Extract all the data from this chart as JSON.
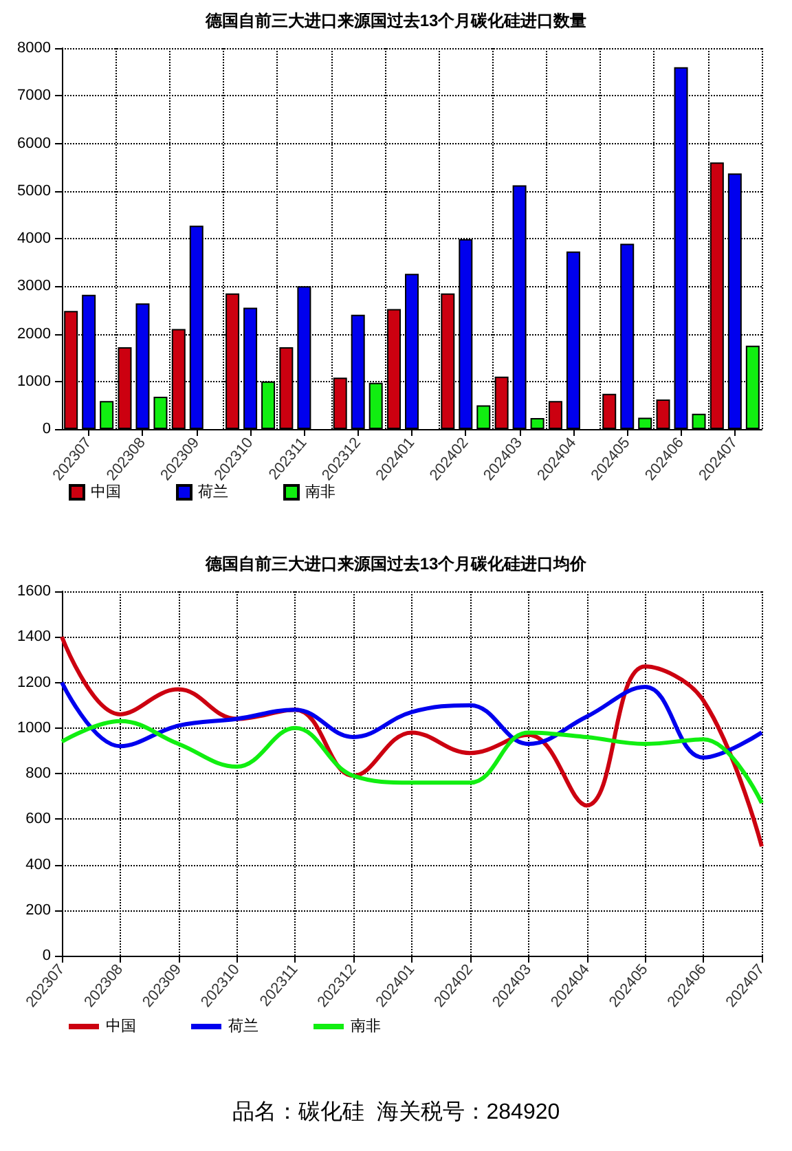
{
  "chart_data": [
    {
      "type": "bar",
      "title": "德国自前三大进口来源国过去13个月碳化硅进口数量",
      "categories": [
        "202307",
        "202308",
        "202309",
        "202310",
        "202311",
        "202312",
        "202401",
        "202402",
        "202403",
        "202404",
        "202405",
        "202406",
        "202407"
      ],
      "series": [
        {
          "name": "中国",
          "color": "#cc0010",
          "values": [
            2480,
            1720,
            2100,
            2850,
            1720,
            1080,
            2520,
            2850,
            1100,
            590,
            740,
            620,
            5600
          ]
        },
        {
          "name": "荷兰",
          "color": "#0000ee",
          "values": [
            2820,
            2640,
            4270,
            2550,
            3000,
            2400,
            3260,
            3990,
            5120,
            3730,
            3890,
            7600,
            5370
          ]
        },
        {
          "name": "南非",
          "color": "#11ee11",
          "values": [
            590,
            680,
            null,
            1000,
            null,
            970,
            null,
            500,
            230,
            null,
            240,
            320,
            1750
          ]
        }
      ],
      "ylim": [
        0,
        8000
      ],
      "yticks": [
        0,
        1000,
        2000,
        3000,
        4000,
        5000,
        6000,
        7000,
        8000
      ],
      "grid": true,
      "legend": "bottom left"
    },
    {
      "type": "line",
      "title": "德国自前三大进口来源国过去13个月碳化硅进口均价",
      "categories": [
        "202307",
        "202308",
        "202309",
        "202310",
        "202311",
        "202312",
        "202401",
        "202402",
        "202403",
        "202404",
        "202405",
        "202406",
        "202407"
      ],
      "series": [
        {
          "name": "中国",
          "color": "#cc0010",
          "values": [
            1400,
            1060,
            1170,
            1040,
            1080,
            790,
            980,
            890,
            970,
            660,
            1270,
            1120,
            480
          ]
        },
        {
          "name": "荷兰",
          "color": "#0000ee",
          "values": [
            1200,
            920,
            1010,
            1040,
            1080,
            960,
            1070,
            1100,
            930,
            1050,
            1180,
            870,
            980
          ]
        },
        {
          "name": "南非",
          "color": "#11ee11",
          "values": [
            940,
            1030,
            930,
            830,
            1000,
            790,
            760,
            760,
            980,
            960,
            930,
            950,
            670
          ]
        }
      ],
      "ylim": [
        0,
        1600
      ],
      "yticks": [
        0,
        200,
        400,
        600,
        800,
        1000,
        1200,
        1400,
        1600
      ],
      "grid": true,
      "legend": "bottom left",
      "marker": "none",
      "annotations": [
        "品名：碳化硅  海关税号：284920"
      ]
    }
  ]
}
